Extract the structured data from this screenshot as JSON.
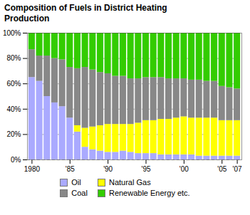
{
  "chart_data": {
    "type": "bar",
    "stacked": true,
    "title": "Composition of Fuels in District Heating\nProduction",
    "x": [
      1980,
      1981,
      1982,
      1983,
      1984,
      1985,
      1986,
      1987,
      1988,
      1989,
      1990,
      1991,
      1992,
      1993,
      1994,
      1995,
      1996,
      1997,
      1998,
      1999,
      2000,
      2001,
      2002,
      2003,
      2004,
      2005,
      2006,
      2007
    ],
    "series": [
      {
        "name": "Oil",
        "color": "#aaaaff",
        "values": [
          65,
          62,
          50,
          45,
          42,
          33,
          22,
          10,
          8,
          7,
          6,
          6,
          7,
          6,
          5,
          5,
          5,
          4,
          4,
          4,
          4,
          4,
          3,
          3,
          3,
          3,
          3,
          3
        ]
      },
      {
        "name": "Natural Gas",
        "color": "#ffff00",
        "values": [
          0,
          0,
          0,
          0,
          0,
          0,
          5,
          15,
          18,
          20,
          22,
          22,
          21,
          22,
          24,
          26,
          26,
          28,
          28,
          29,
          30,
          29,
          30,
          30,
          30,
          28,
          28,
          28
        ]
      },
      {
        "name": "Coal",
        "color": "#888888",
        "values": [
          22,
          20,
          32,
          35,
          37,
          40,
          45,
          48,
          45,
          42,
          40,
          38,
          38,
          36,
          35,
          34,
          34,
          33,
          32,
          31,
          30,
          30,
          30,
          29,
          29,
          27,
          26,
          25
        ]
      },
      {
        "name": "Renewable Energy etc.",
        "color": "#33cc00",
        "values": [
          13,
          18,
          18,
          20,
          21,
          27,
          28,
          27,
          29,
          31,
          32,
          34,
          34,
          36,
          36,
          35,
          35,
          35,
          36,
          36,
          36,
          37,
          37,
          38,
          38,
          42,
          43,
          44
        ]
      }
    ],
    "xlim": [
      1979.4,
      2007.6
    ],
    "xticks": [
      1980,
      {
        "value": 1985,
        "label": "'85"
      },
      {
        "value": 1990,
        "label": "'90"
      },
      {
        "value": 1995,
        "label": "'95"
      },
      {
        "value": 2000,
        "label": "'00"
      },
      {
        "value": 2005,
        "label": "'05"
      },
      {
        "value": 2007,
        "label": "'07"
      }
    ],
    "ylim": [
      0,
      100
    ],
    "yticks": [
      {
        "value": 0,
        "label": "0%"
      },
      {
        "value": 20,
        "label": "20%"
      },
      {
        "value": 40,
        "label": "40%"
      },
      {
        "value": 60,
        "label": "60%"
      },
      {
        "value": 80,
        "label": "80%"
      },
      {
        "value": 100,
        "label": "100%"
      }
    ],
    "grid": true,
    "legend": "bottom"
  }
}
